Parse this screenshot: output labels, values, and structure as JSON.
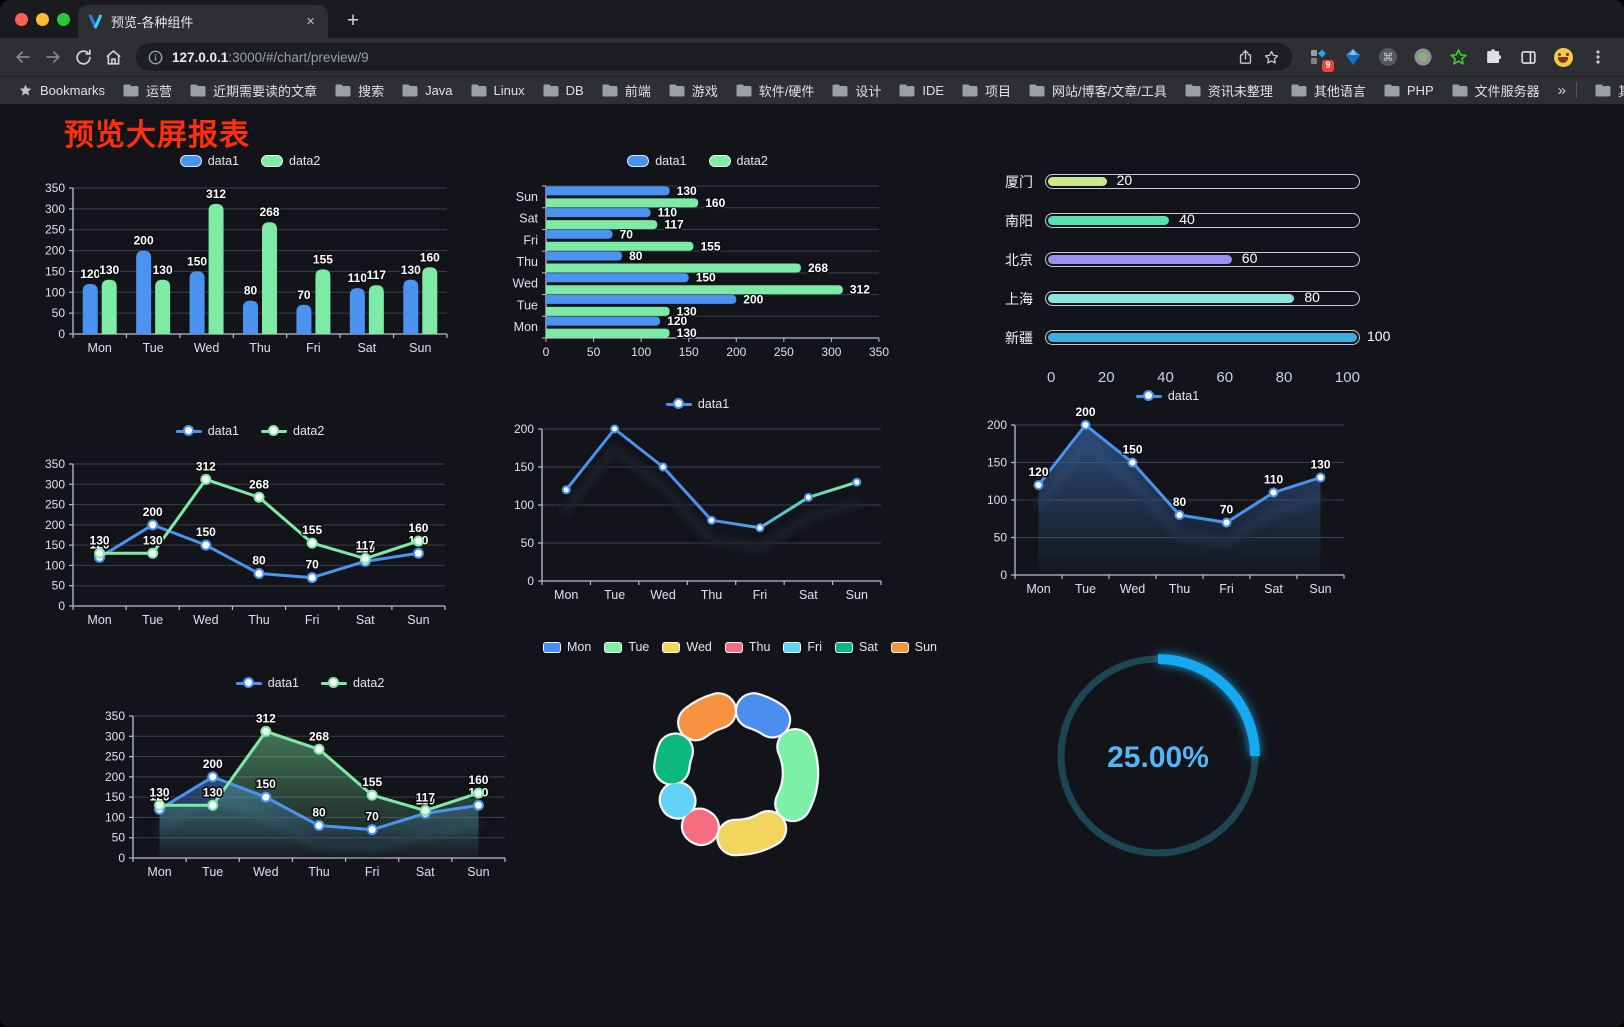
{
  "browser": {
    "tab_title": "预览-各种组件",
    "tab_close": "×",
    "new_tab": "+",
    "url_host": "127.0.0.1",
    "url_rest": ":3000/#/chart/preview/9",
    "extensions_badge": "9",
    "bookmarks_label": "Bookmarks",
    "bookmark_folders": [
      "运营",
      "近期需要读的文章",
      "搜索",
      "Java",
      "Linux",
      "DB",
      "前端",
      "游戏",
      "软件/硬件",
      "设计",
      "IDE",
      "项目",
      "网站/博客/文章/工具",
      "资讯未整理",
      "其他语言",
      "PHP",
      "文件服务器"
    ],
    "bookmarks_overflow": "»",
    "other_bookmarks": "其他书签",
    "toolbar_icons": [
      "back-arrow",
      "forward-arrow",
      "reload",
      "home"
    ],
    "urlbar_icons": [
      "site-info",
      "share",
      "bookmark-star"
    ],
    "extension_icons": [
      "bento-grid",
      "blue-diamond",
      "command-circle",
      "record-circle",
      "green-star",
      "puzzle",
      "side-panel",
      "emoji-face",
      "menu-dots"
    ]
  },
  "page": {
    "title": "预览大屏报表",
    "title_color": "#ff2f0e"
  },
  "chart_data": [
    {
      "type": "bar",
      "categories": [
        "Mon",
        "Tue",
        "Wed",
        "Thu",
        "Fri",
        "Sat",
        "Sun"
      ],
      "series": [
        {
          "name": "data1",
          "color": "#4b93f1",
          "values": [
            120,
            200,
            150,
            80,
            70,
            110,
            130
          ]
        },
        {
          "name": "data2",
          "color": "#7deaa5",
          "values": [
            130,
            130,
            312,
            268,
            155,
            117,
            160
          ]
        }
      ],
      "ylim": [
        0,
        350
      ],
      "ytick_step": 50,
      "labels": true,
      "legend_position": "top",
      "grid": true
    },
    {
      "type": "bar-horizontal",
      "categories": [
        "Mon",
        "Tue",
        "Wed",
        "Thu",
        "Fri",
        "Sat",
        "Sun"
      ],
      "display_order": "reversed",
      "series": [
        {
          "name": "data1",
          "color": "#4b93f1",
          "values": [
            120,
            200,
            150,
            80,
            70,
            110,
            130
          ]
        },
        {
          "name": "data2",
          "color": "#7deaa5",
          "values": [
            130,
            130,
            312,
            268,
            155,
            117,
            160
          ]
        }
      ],
      "xlim": [
        0,
        350
      ],
      "xtick_step": 50,
      "labels": true,
      "legend_position": "top"
    },
    {
      "type": "bar-capsule",
      "categories": [
        "厦门",
        "南阳",
        "北京",
        "上海",
        "新疆"
      ],
      "values": [
        20,
        40,
        60,
        80,
        100
      ],
      "colors": [
        "#cde98c",
        "#55e2ad",
        "#9a90f0",
        "#8ce4de",
        "#3aaede"
      ],
      "xlim": [
        0,
        100
      ],
      "xticks": [
        0,
        20,
        40,
        60,
        80,
        100
      ],
      "labels": true
    },
    {
      "type": "line",
      "categories": [
        "Mon",
        "Tue",
        "Wed",
        "Thu",
        "Fri",
        "Sat",
        "Sun"
      ],
      "series": [
        {
          "name": "data1",
          "color": "#4b93f1",
          "values": [
            120,
            200,
            150,
            80,
            70,
            110,
            130
          ]
        },
        {
          "name": "data2",
          "color": "#7deaa5",
          "values": [
            130,
            130,
            312,
            268,
            155,
            117,
            160
          ]
        }
      ],
      "ylim": [
        0,
        350
      ],
      "ytick_step": 50,
      "labels": true,
      "legend_position": "top",
      "grid": true
    },
    {
      "type": "line",
      "categories": [
        "Mon",
        "Tue",
        "Wed",
        "Thu",
        "Fri",
        "Sat",
        "Sun"
      ],
      "series": [
        {
          "name": "data1",
          "color": "#4b93f1",
          "values": [
            120,
            200,
            150,
            80,
            70,
            110,
            130
          ]
        }
      ],
      "ylim": [
        0,
        200
      ],
      "ytick_step": 50,
      "labels": false,
      "legend_position": "top",
      "grid": true,
      "gradient_stroke": [
        "#4b93f1",
        "#58d5c6",
        "#7deaa5"
      ],
      "shadow": true
    },
    {
      "type": "area",
      "categories": [
        "Mon",
        "Tue",
        "Wed",
        "Thu",
        "Fri",
        "Sat",
        "Sun"
      ],
      "series": [
        {
          "name": "data1",
          "color": "#4b93f1",
          "values": [
            120,
            200,
            150,
            80,
            70,
            110,
            130
          ]
        }
      ],
      "ylim": [
        0,
        200
      ],
      "ytick_step": 50,
      "labels": true,
      "legend_position": "top",
      "grid": true,
      "shadow": true
    },
    {
      "type": "area",
      "categories": [
        "Mon",
        "Tue",
        "Wed",
        "Thu",
        "Fri",
        "Sat",
        "Sun"
      ],
      "series": [
        {
          "name": "data1",
          "color": "#4b93f1",
          "values": [
            120,
            200,
            150,
            80,
            70,
            110,
            130
          ]
        },
        {
          "name": "data2",
          "color": "#7deaa5",
          "values": [
            130,
            130,
            312,
            268,
            155,
            117,
            160
          ]
        }
      ],
      "ylim": [
        0,
        350
      ],
      "ytick_step": 50,
      "labels": true,
      "legend_position": "top",
      "grid": true,
      "shadow": true
    },
    {
      "type": "pie",
      "shape": "donut-rounded",
      "categories": [
        "Mon",
        "Tue",
        "Wed",
        "Thu",
        "Fri",
        "Sat",
        "Sun"
      ],
      "values": [
        120,
        200,
        150,
        80,
        70,
        110,
        130
      ],
      "colors": [
        "#4a8ef0",
        "#7df0a8",
        "#f2d55e",
        "#f56d7f",
        "#5fd2f5",
        "#0db87e",
        "#f79240"
      ],
      "legend_position": "top"
    },
    {
      "type": "gauge",
      "value": 25,
      "label": "25.00%",
      "color": "#18a9f2",
      "track_color": "#1c4653",
      "text_color": "#55b6f7"
    }
  ]
}
